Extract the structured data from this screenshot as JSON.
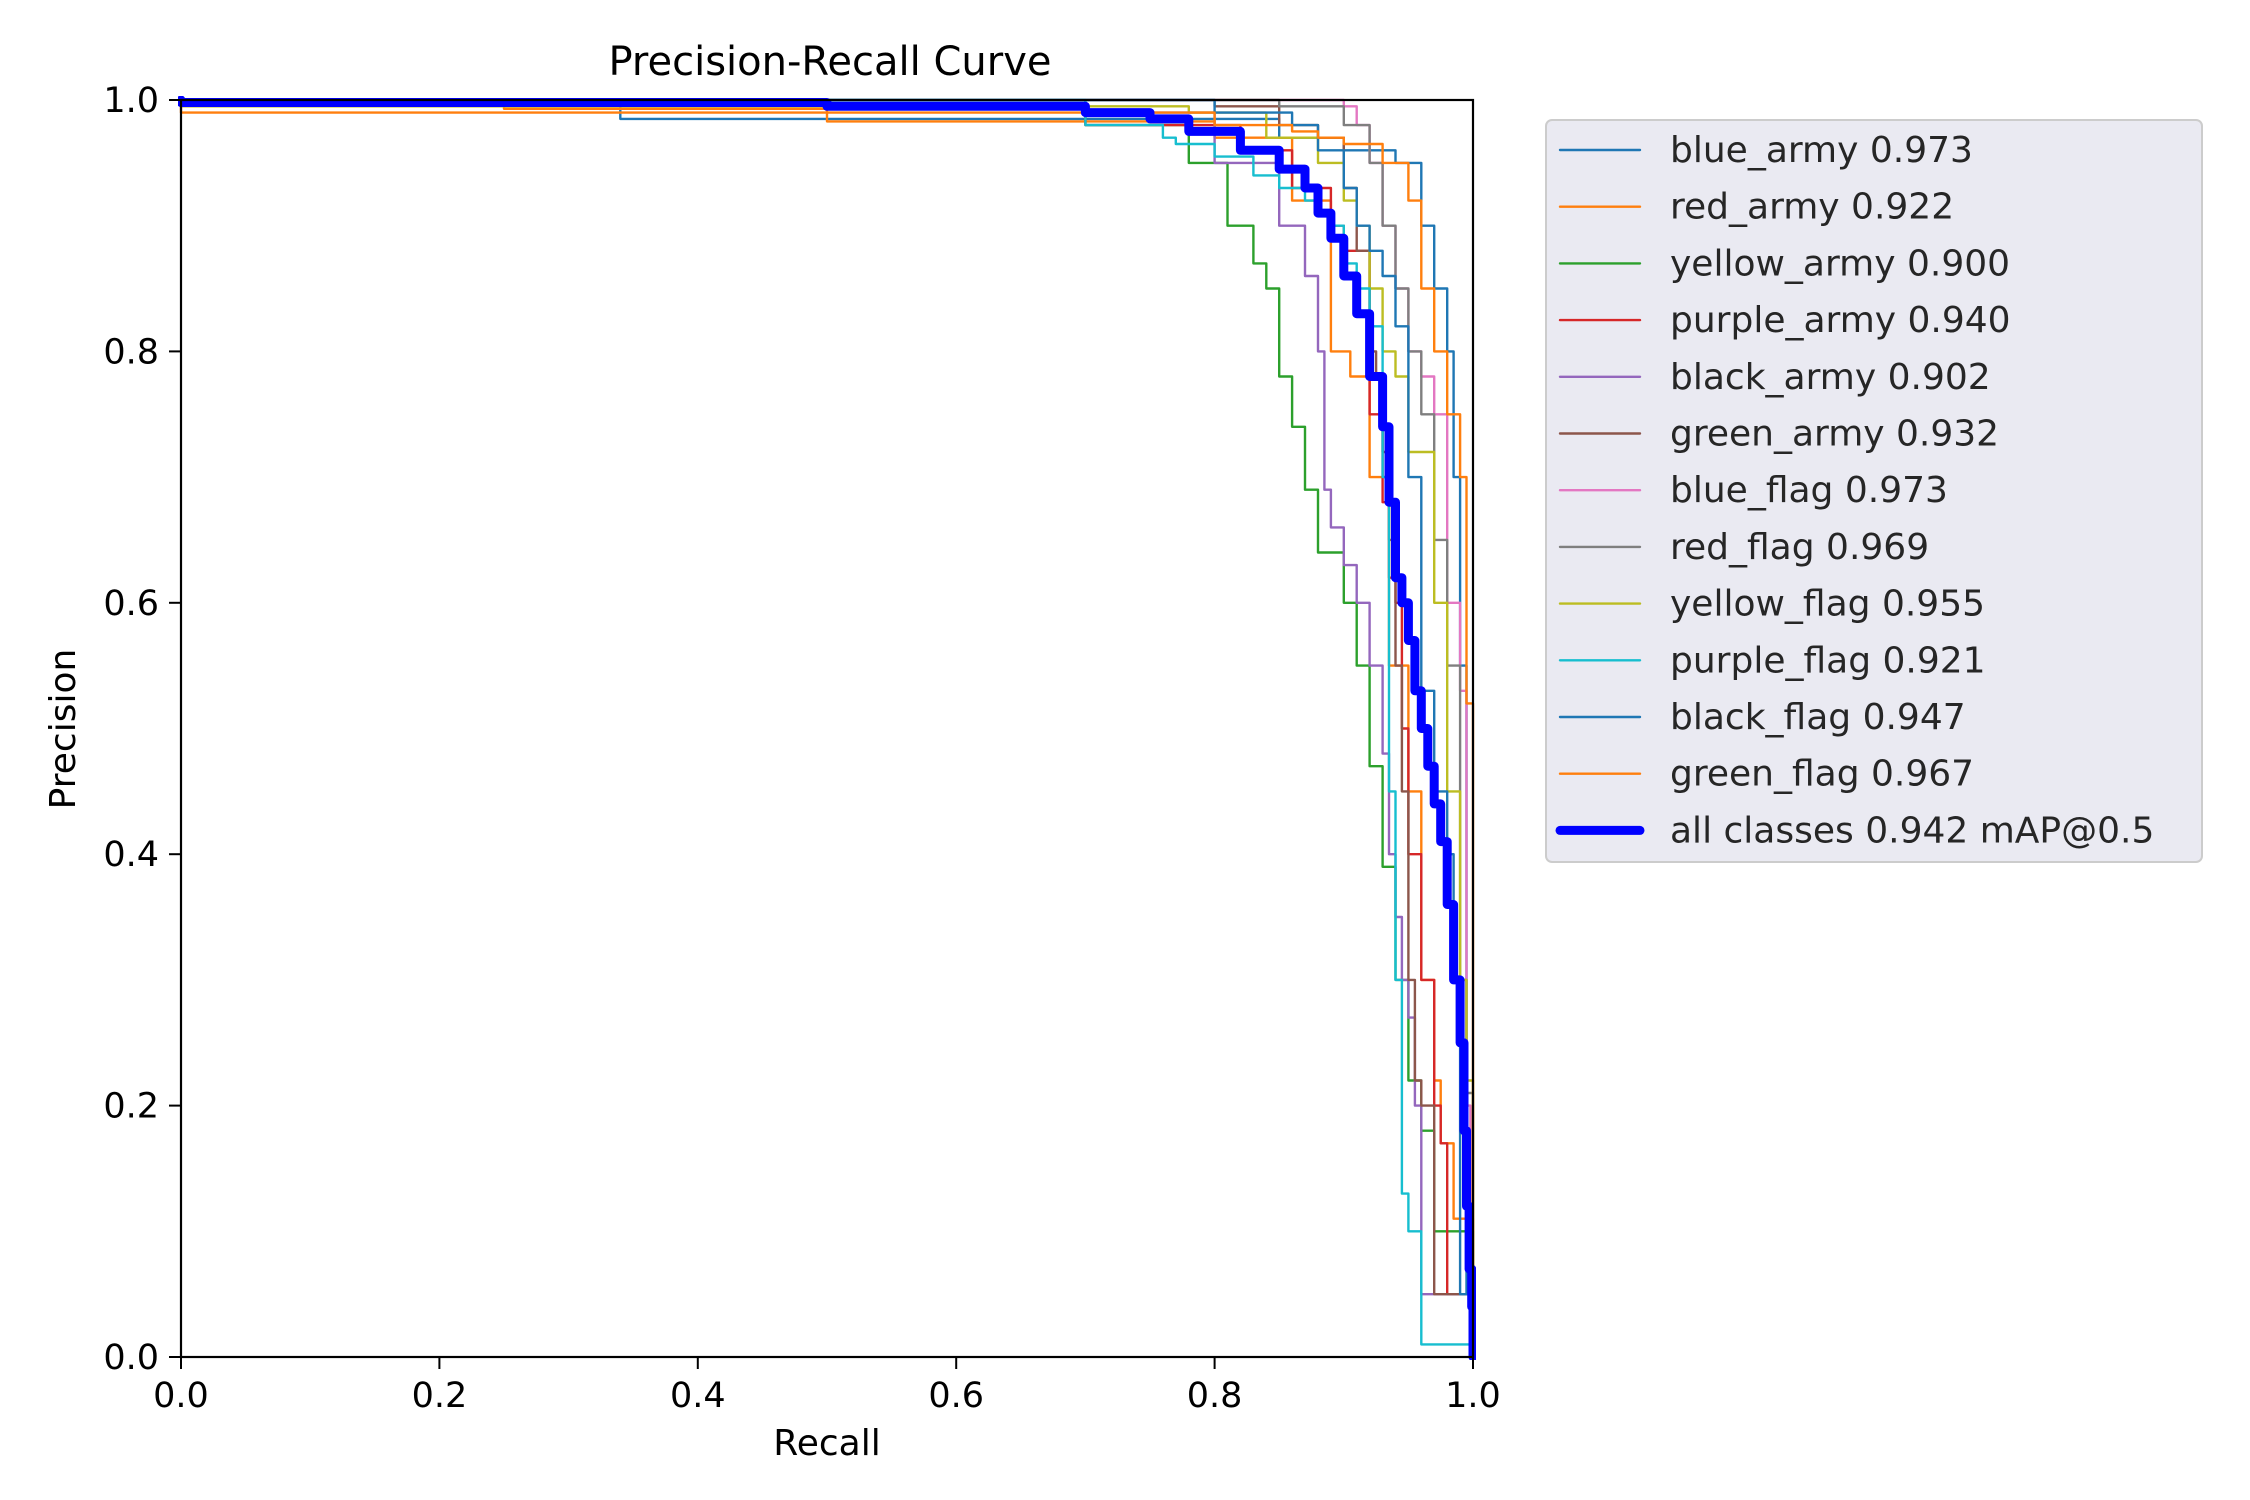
{
  "chart_data": {
    "type": "line",
    "title": "Precision-Recall Curve",
    "xlabel": "Recall",
    "ylabel": "Precision",
    "xlim": [
      0,
      1
    ],
    "ylim": [
      0,
      1
    ],
    "x_ticks": [
      "0.0",
      "0.2",
      "0.4",
      "0.6",
      "0.8",
      "1.0"
    ],
    "y_ticks": [
      "0.0",
      "0.2",
      "0.4",
      "0.6",
      "0.8",
      "1.0"
    ],
    "grid": false,
    "legend_position": "outside right, top",
    "legend_background": "#eaeaf2",
    "series": [
      {
        "name": "blue_army",
        "label": "blue_army 0.973",
        "color": "#1f77b4",
        "points": [
          [
            0,
            1
          ],
          [
            0.34,
            1
          ],
          [
            0.35,
            0.985
          ],
          [
            0.6,
            0.985
          ],
          [
            0.85,
            0.985
          ],
          [
            0.9,
            0.97
          ],
          [
            0.94,
            0.96
          ],
          [
            0.96,
            0.95
          ],
          [
            0.97,
            0.9
          ],
          [
            0.98,
            0.85
          ],
          [
            0.985,
            0.8
          ],
          [
            0.99,
            0.7
          ],
          [
            0.995,
            0.55
          ],
          [
            1.0,
            0.05
          ],
          [
            1.0,
            0
          ]
        ]
      },
      {
        "name": "red_army",
        "label": "red_army 0.922",
        "color": "#ff7f0e",
        "points": [
          [
            0,
            1
          ],
          [
            0.25,
            1
          ],
          [
            0.255,
            0.993
          ],
          [
            0.5,
            0.993
          ],
          [
            0.51,
            0.983
          ],
          [
            0.8,
            0.983
          ],
          [
            0.86,
            0.97
          ],
          [
            0.89,
            0.92
          ],
          [
            0.905,
            0.8
          ],
          [
            0.92,
            0.78
          ],
          [
            0.935,
            0.7
          ],
          [
            0.95,
            0.55
          ],
          [
            0.96,
            0.45
          ],
          [
            0.97,
            0.3
          ],
          [
            0.975,
            0.22
          ],
          [
            0.985,
            0.17
          ],
          [
            1.0,
            0.11
          ],
          [
            1.0,
            0
          ]
        ]
      },
      {
        "name": "yellow_army",
        "label": "yellow_army 0.900",
        "color": "#2ca02c",
        "points": [
          [
            0,
            1
          ],
          [
            0.7,
            1
          ],
          [
            0.78,
            0.98
          ],
          [
            0.81,
            0.95
          ],
          [
            0.83,
            0.9
          ],
          [
            0.84,
            0.87
          ],
          [
            0.85,
            0.85
          ],
          [
            0.86,
            0.78
          ],
          [
            0.87,
            0.74
          ],
          [
            0.88,
            0.69
          ],
          [
            0.9,
            0.64
          ],
          [
            0.91,
            0.6
          ],
          [
            0.92,
            0.55
          ],
          [
            0.93,
            0.47
          ],
          [
            0.94,
            0.39
          ],
          [
            0.95,
            0.3
          ],
          [
            0.96,
            0.22
          ],
          [
            0.97,
            0.18
          ],
          [
            1.0,
            0.1
          ],
          [
            1.0,
            0
          ]
        ]
      },
      {
        "name": "purple_army",
        "label": "purple_army 0.940",
        "color": "#d62728",
        "points": [
          [
            0,
            1
          ],
          [
            0.7,
            1
          ],
          [
            0.82,
            0.98
          ],
          [
            0.86,
            0.96
          ],
          [
            0.89,
            0.93
          ],
          [
            0.9,
            0.9
          ],
          [
            0.92,
            0.88
          ],
          [
            0.93,
            0.75
          ],
          [
            0.935,
            0.68
          ],
          [
            0.94,
            0.62
          ],
          [
            0.945,
            0.6
          ],
          [
            0.95,
            0.5
          ],
          [
            0.96,
            0.4
          ],
          [
            0.97,
            0.3
          ],
          [
            0.975,
            0.2
          ],
          [
            0.98,
            0.17
          ],
          [
            1.0,
            0.05
          ],
          [
            1.0,
            0
          ]
        ]
      },
      {
        "name": "black_army",
        "label": "black_army 0.902",
        "color": "#9467bd",
        "points": [
          [
            0,
            1
          ],
          [
            0.7,
            1
          ],
          [
            0.8,
            0.99
          ],
          [
            0.85,
            0.95
          ],
          [
            0.87,
            0.9
          ],
          [
            0.88,
            0.86
          ],
          [
            0.885,
            0.8
          ],
          [
            0.89,
            0.69
          ],
          [
            0.9,
            0.66
          ],
          [
            0.91,
            0.63
          ],
          [
            0.92,
            0.6
          ],
          [
            0.93,
            0.55
          ],
          [
            0.935,
            0.48
          ],
          [
            0.94,
            0.4
          ],
          [
            0.945,
            0.35
          ],
          [
            0.95,
            0.3
          ],
          [
            0.955,
            0.27
          ],
          [
            0.96,
            0.2
          ],
          [
            1.0,
            0.05
          ],
          [
            1.0,
            0
          ]
        ]
      },
      {
        "name": "green_army",
        "label": "green_army 0.932",
        "color": "#8c564b",
        "points": [
          [
            0,
            1
          ],
          [
            0.8,
            1
          ],
          [
            0.85,
            0.995
          ],
          [
            0.88,
            0.98
          ],
          [
            0.9,
            0.97
          ],
          [
            0.91,
            0.93
          ],
          [
            0.92,
            0.88
          ],
          [
            0.925,
            0.8
          ],
          [
            0.93,
            0.78
          ],
          [
            0.935,
            0.72
          ],
          [
            0.94,
            0.65
          ],
          [
            0.945,
            0.55
          ],
          [
            0.95,
            0.45
          ],
          [
            0.955,
            0.3
          ],
          [
            0.96,
            0.22
          ],
          [
            0.97,
            0.2
          ],
          [
            1.0,
            0.05
          ],
          [
            1.0,
            0
          ]
        ]
      },
      {
        "name": "blue_flag",
        "label": "blue_flag 0.973",
        "color": "#e377c2",
        "points": [
          [
            0,
            1
          ],
          [
            0.9,
            1
          ],
          [
            0.91,
            0.995
          ],
          [
            0.92,
            0.98
          ],
          [
            0.93,
            0.95
          ],
          [
            0.94,
            0.9
          ],
          [
            0.95,
            0.85
          ],
          [
            0.96,
            0.8
          ],
          [
            0.97,
            0.78
          ],
          [
            0.98,
            0.75
          ],
          [
            0.99,
            0.6
          ],
          [
            0.995,
            0.53
          ],
          [
            0.998,
            0.2
          ],
          [
            1.0,
            0.02
          ],
          [
            1.0,
            0
          ]
        ]
      },
      {
        "name": "red_flag",
        "label": "red_flag 0.969",
        "color": "#7f7f7f",
        "points": [
          [
            0,
            1
          ],
          [
            0.85,
            1
          ],
          [
            0.9,
            0.995
          ],
          [
            0.92,
            0.98
          ],
          [
            0.93,
            0.95
          ],
          [
            0.94,
            0.9
          ],
          [
            0.95,
            0.85
          ],
          [
            0.96,
            0.8
          ],
          [
            0.97,
            0.75
          ],
          [
            0.98,
            0.65
          ],
          [
            0.99,
            0.55
          ],
          [
            0.995,
            0.3
          ],
          [
            1.0,
            0.21
          ],
          [
            1.0,
            0
          ]
        ]
      },
      {
        "name": "yellow_flag",
        "label": "yellow_flag 0.955",
        "color": "#bcbd22",
        "points": [
          [
            0,
            1
          ],
          [
            0.78,
            0.995
          ],
          [
            0.84,
            0.99
          ],
          [
            0.88,
            0.97
          ],
          [
            0.9,
            0.95
          ],
          [
            0.91,
            0.92
          ],
          [
            0.92,
            0.9
          ],
          [
            0.93,
            0.85
          ],
          [
            0.94,
            0.8
          ],
          [
            0.95,
            0.78
          ],
          [
            0.97,
            0.72
          ],
          [
            0.98,
            0.6
          ],
          [
            0.99,
            0.45
          ],
          [
            0.995,
            0.3
          ],
          [
            1.0,
            0.22
          ],
          [
            1.0,
            0
          ]
        ]
      },
      {
        "name": "purple_flag",
        "label": "purple_flag 0.921",
        "color": "#17becf",
        "points": [
          [
            0,
            1
          ],
          [
            0.7,
            1
          ],
          [
            0.76,
            0.98
          ],
          [
            0.77,
            0.97
          ],
          [
            0.8,
            0.965
          ],
          [
            0.83,
            0.955
          ],
          [
            0.85,
            0.94
          ],
          [
            0.87,
            0.93
          ],
          [
            0.88,
            0.92
          ],
          [
            0.89,
            0.91
          ],
          [
            0.9,
            0.9
          ],
          [
            0.91,
            0.87
          ],
          [
            0.92,
            0.85
          ],
          [
            0.93,
            0.82
          ],
          [
            0.935,
            0.7
          ],
          [
            0.94,
            0.45
          ],
          [
            0.945,
            0.3
          ],
          [
            0.95,
            0.13
          ],
          [
            0.96,
            0.1
          ],
          [
            1.0,
            0.01
          ],
          [
            1.0,
            0
          ]
        ]
      },
      {
        "name": "black_flag",
        "label": "black_flag 0.947",
        "color": "#1f77b4",
        "points": [
          [
            0,
            1
          ],
          [
            0.8,
            1
          ],
          [
            0.86,
            0.99
          ],
          [
            0.88,
            0.98
          ],
          [
            0.9,
            0.96
          ],
          [
            0.91,
            0.93
          ],
          [
            0.92,
            0.9
          ],
          [
            0.93,
            0.88
          ],
          [
            0.94,
            0.86
          ],
          [
            0.95,
            0.82
          ],
          [
            0.96,
            0.7
          ],
          [
            0.97,
            0.53
          ],
          [
            0.98,
            0.45
          ],
          [
            0.985,
            0.4
          ],
          [
            0.99,
            0.3
          ],
          [
            1.0,
            0.05
          ],
          [
            1.0,
            0
          ]
        ]
      },
      {
        "name": "green_flag",
        "label": "green_flag 0.967",
        "color": "#ff7f0e",
        "points": [
          [
            0,
            1
          ],
          [
            0.8,
            0.99
          ],
          [
            0.86,
            0.98
          ],
          [
            0.88,
            0.975
          ],
          [
            0.9,
            0.97
          ],
          [
            0.93,
            0.965
          ],
          [
            0.95,
            0.95
          ],
          [
            0.96,
            0.92
          ],
          [
            0.97,
            0.85
          ],
          [
            0.98,
            0.8
          ],
          [
            0.99,
            0.75
          ],
          [
            0.995,
            0.7
          ],
          [
            1.0,
            0.52
          ],
          [
            1.0,
            0.2
          ],
          [
            1.0,
            0
          ]
        ]
      },
      {
        "name": "all classes",
        "label": "all classes 0.942 mAP@0.5",
        "color": "#0000ff",
        "bold": true,
        "points": [
          [
            0,
            1
          ],
          [
            0.5,
            0.998
          ],
          [
            0.7,
            0.995
          ],
          [
            0.75,
            0.99
          ],
          [
            0.78,
            0.985
          ],
          [
            0.82,
            0.975
          ],
          [
            0.85,
            0.96
          ],
          [
            0.87,
            0.945
          ],
          [
            0.88,
            0.93
          ],
          [
            0.89,
            0.91
          ],
          [
            0.9,
            0.89
          ],
          [
            0.91,
            0.86
          ],
          [
            0.92,
            0.83
          ],
          [
            0.93,
            0.78
          ],
          [
            0.935,
            0.74
          ],
          [
            0.94,
            0.68
          ],
          [
            0.945,
            0.62
          ],
          [
            0.95,
            0.6
          ],
          [
            0.955,
            0.57
          ],
          [
            0.96,
            0.53
          ],
          [
            0.965,
            0.5
          ],
          [
            0.97,
            0.47
          ],
          [
            0.975,
            0.44
          ],
          [
            0.98,
            0.41
          ],
          [
            0.985,
            0.36
          ],
          [
            0.99,
            0.3
          ],
          [
            0.993,
            0.25
          ],
          [
            0.995,
            0.18
          ],
          [
            0.997,
            0.12
          ],
          [
            0.999,
            0.07
          ],
          [
            1.0,
            0.04
          ],
          [
            1.0,
            0
          ]
        ]
      }
    ]
  }
}
